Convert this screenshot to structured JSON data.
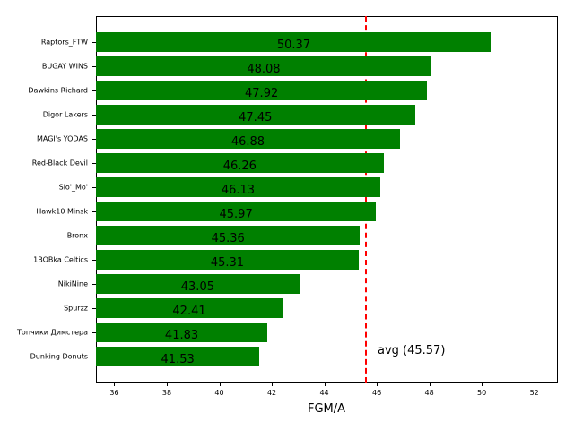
{
  "chart_data": {
    "type": "bar",
    "orientation": "horizontal",
    "title": "",
    "xlabel": "FGM/A",
    "ylabel": "",
    "xlim": [
      35.3,
      52.9
    ],
    "xticks": [
      36,
      38,
      40,
      42,
      44,
      46,
      48,
      50,
      52
    ],
    "categories": [
      "Raptors_FTW",
      "BUGAY WINS",
      "Dawkins Richard",
      "Digor Lakers",
      "MAGI's YODAS",
      "Red-Black Devil",
      "Slo'_Mo'",
      "Hawk10 Minsk",
      "Bronx",
      "1BOBka Celtics",
      "NikiNine",
      "Spurzz",
      "Топчики Димстера",
      "Dunking Donuts"
    ],
    "values": [
      50.37,
      48.08,
      47.92,
      47.45,
      46.88,
      46.26,
      46.13,
      45.97,
      45.36,
      45.31,
      43.05,
      42.41,
      41.83,
      41.53
    ],
    "bar_color": "#008000",
    "average": {
      "value": 45.57,
      "label": "avg (45.57)",
      "color": "#ff0000",
      "style": "dashed"
    },
    "grid": false,
    "legend": null
  }
}
